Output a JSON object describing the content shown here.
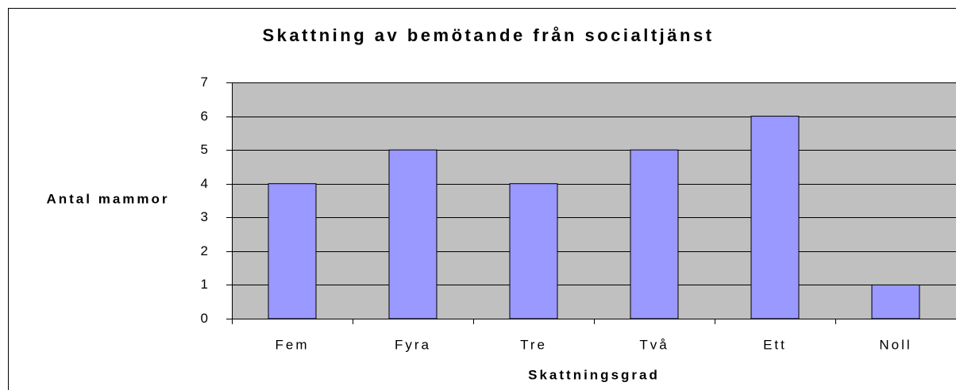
{
  "chart_data": {
    "type": "bar",
    "title": "Skattning av bemötande från socialtjänst",
    "x_label": "Skattningsgrad",
    "y_label": "Antal mammor",
    "categories": [
      "Fem",
      "Fyra",
      "Tre",
      "Två",
      "Ett",
      "Noll"
    ],
    "values": [
      4,
      5,
      4,
      5,
      6,
      1
    ],
    "color": "#9999ff",
    "plot_background": "#c0c0c0",
    "ylim": [
      0,
      7
    ],
    "yticks": [
      0,
      1,
      2,
      3,
      4,
      5,
      6,
      7
    ],
    "grid": true
  }
}
